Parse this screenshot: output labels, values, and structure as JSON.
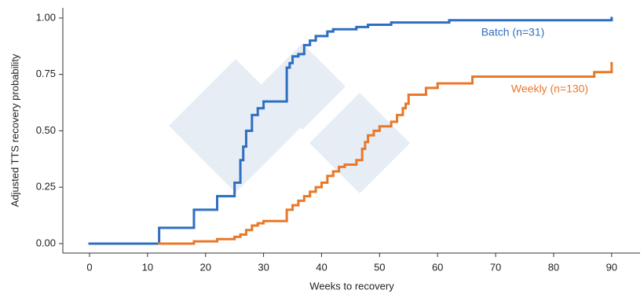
{
  "chart_data": {
    "type": "step",
    "x_label": "Weeks to recovery",
    "y_label": "Adjusted TTS recovery probability",
    "xlim": [
      -4.6,
      94.9
    ],
    "ylim": [
      -0.042,
      1.045
    ],
    "xticks": [
      0,
      10,
      20,
      30,
      40,
      50,
      60,
      70,
      80,
      90
    ],
    "yticks": [
      {
        "value": 0,
        "label": "0.00"
      },
      {
        "value": 0.25,
        "label": "0.25"
      },
      {
        "value": 0.5,
        "label": "0.50"
      },
      {
        "value": 0.75,
        "label": "0.75"
      },
      {
        "value": 1,
        "label": "1.00"
      }
    ],
    "series": [
      {
        "name": "Batch (n=31)",
        "color": "#2f6fc1",
        "x": [
          0,
          12,
          18,
          22,
          25,
          26,
          26.5,
          27,
          28,
          29,
          30,
          34,
          34.5,
          35,
          36,
          37,
          38,
          39,
          41,
          42,
          46,
          48,
          52,
          62,
          90
        ],
        "values": [
          0,
          0.07,
          0.15,
          0.21,
          0.27,
          0.37,
          0.43,
          0.5,
          0.57,
          0.6,
          0.63,
          0.78,
          0.8,
          0.83,
          0.84,
          0.88,
          0.9,
          0.92,
          0.94,
          0.95,
          0.96,
          0.97,
          0.98,
          0.99,
          1.0
        ]
      },
      {
        "name": "Weekly (n=130)",
        "color": "#e8792a",
        "x": [
          12,
          18,
          22,
          25,
          26,
          27,
          28,
          29,
          30,
          34,
          35,
          36,
          37,
          38,
          39,
          40,
          41,
          42,
          43,
          44,
          46,
          47,
          47.5,
          48,
          49,
          50,
          52,
          53,
          54,
          54.5,
          55,
          58,
          60,
          66,
          87,
          90
        ],
        "values": [
          0,
          0.01,
          0.02,
          0.03,
          0.04,
          0.06,
          0.08,
          0.09,
          0.1,
          0.15,
          0.17,
          0.19,
          0.21,
          0.23,
          0.25,
          0.27,
          0.3,
          0.32,
          0.34,
          0.35,
          0.37,
          0.42,
          0.45,
          0.48,
          0.5,
          0.52,
          0.54,
          0.57,
          0.6,
          0.62,
          0.66,
          0.69,
          0.71,
          0.74,
          0.76,
          0.8
        ]
      }
    ]
  }
}
